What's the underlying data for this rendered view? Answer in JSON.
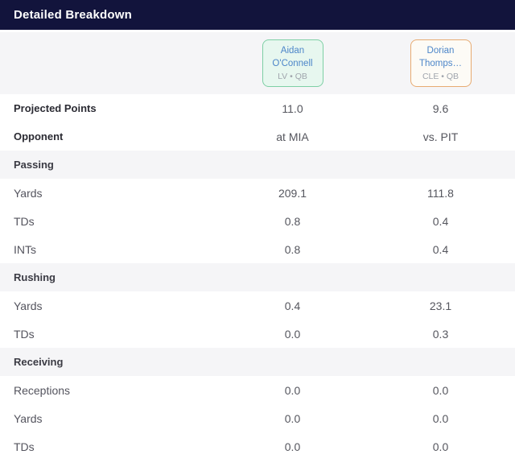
{
  "header": {
    "title": "Detailed Breakdown"
  },
  "players": [
    {
      "name": "Aidan O'Connell",
      "team_pos": "LV • QB",
      "border_color": "#7ecfa5",
      "bg_color": "#e7f7ef",
      "name_color": "#4d86c9",
      "team_color": "#a0a5ad"
    },
    {
      "name": "Dorian Thomps…",
      "team_pos": "CLE • QB",
      "border_color": "#e7ab72",
      "bg_color": "#fdfbf6",
      "name_color": "#4d86c9",
      "team_color": "#a0a5ad"
    }
  ],
  "rows": [
    {
      "type": "stat-bold",
      "label": "Projected Points",
      "values": [
        "11.0",
        "9.6"
      ]
    },
    {
      "type": "stat-bold",
      "label": "Opponent",
      "values": [
        "at MIA",
        "vs. PIT"
      ]
    },
    {
      "type": "section",
      "label": "Passing",
      "values": [
        "",
        ""
      ]
    },
    {
      "type": "stat",
      "label": "Yards",
      "values": [
        "209.1",
        "111.8"
      ]
    },
    {
      "type": "stat",
      "label": "TDs",
      "values": [
        "0.8",
        "0.4"
      ]
    },
    {
      "type": "stat",
      "label": "INTs",
      "values": [
        "0.8",
        "0.4"
      ]
    },
    {
      "type": "section",
      "label": "Rushing",
      "values": [
        "",
        ""
      ]
    },
    {
      "type": "stat",
      "label": "Yards",
      "values": [
        "0.4",
        "23.1"
      ]
    },
    {
      "type": "stat",
      "label": "TDs",
      "values": [
        "0.0",
        "0.3"
      ]
    },
    {
      "type": "section",
      "label": "Receiving",
      "values": [
        "",
        ""
      ]
    },
    {
      "type": "stat",
      "label": "Receptions",
      "values": [
        "0.0",
        "0.0"
      ]
    },
    {
      "type": "stat",
      "label": "Yards",
      "values": [
        "0.0",
        "0.0"
      ]
    },
    {
      "type": "stat",
      "label": "TDs",
      "values": [
        "0.0",
        "0.0"
      ]
    }
  ],
  "colors": {
    "header_bg": "#12143c",
    "header_text": "#ffffff",
    "section_bg": "#f5f5f7",
    "row_bg": "#ffffff",
    "label_bold": "#2b2b33",
    "label_regular": "#54545e",
    "value": "#55565e"
  }
}
